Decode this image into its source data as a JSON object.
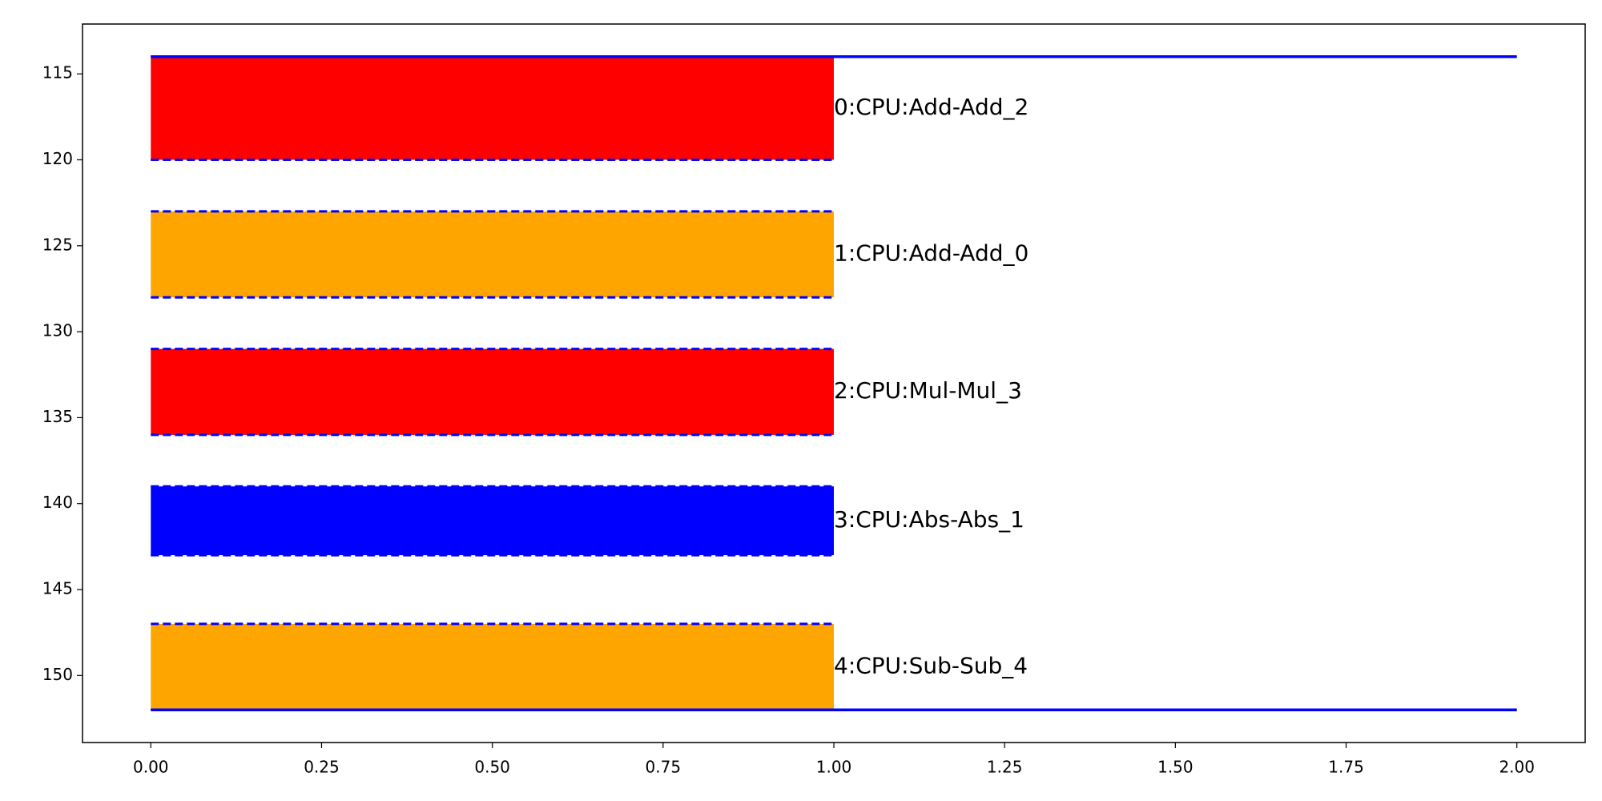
{
  "chart_data": {
    "type": "range_bar",
    "xlim": [
      -0.1,
      2.1
    ],
    "ylim": [
      153.9,
      112.1
    ],
    "xticks": [
      {
        "value": 0,
        "label": "0.00"
      },
      {
        "value": 0.25,
        "label": "0.25"
      },
      {
        "value": 0.5,
        "label": "0.50"
      },
      {
        "value": 0.75,
        "label": "0.75"
      },
      {
        "value": 1,
        "label": "1.00"
      },
      {
        "value": 1.25,
        "label": "1.25"
      },
      {
        "value": 1.5,
        "label": "1.50"
      },
      {
        "value": 1.75,
        "label": "1.75"
      },
      {
        "value": 2,
        "label": "2.00"
      }
    ],
    "yticks": [
      115,
      120,
      125,
      130,
      135,
      140,
      145,
      150
    ],
    "edge_color": "#0000ff",
    "bars": [
      {
        "label": "0:CPU:Add-Add_2",
        "x0": 0,
        "x1": 1,
        "y0": 114,
        "y1": 120,
        "color": "#ff0000"
      },
      {
        "label": "1:CPU:Add-Add_0",
        "x0": 0,
        "x1": 1,
        "y0": 123,
        "y1": 128,
        "color": "#ffa500"
      },
      {
        "label": "2:CPU:Mul-Mul_3",
        "x0": 0,
        "x1": 1,
        "y0": 131,
        "y1": 136,
        "color": "#ff0000"
      },
      {
        "label": "3:CPU:Abs-Abs_1",
        "x0": 0,
        "x1": 1,
        "y0": 139,
        "y1": 143,
        "color": "#0000ff"
      },
      {
        "label": "4:CPU:Sub-Sub_4",
        "x0": 0,
        "x1": 1,
        "y0": 147,
        "y1": 152,
        "color": "#ffa500"
      }
    ],
    "hlines": [
      {
        "y": 114,
        "xmin": 0,
        "xmax": 2,
        "color": "#0000ff"
      },
      {
        "y": 152,
        "xmin": 0,
        "xmax": 2,
        "color": "#0000ff"
      }
    ]
  }
}
